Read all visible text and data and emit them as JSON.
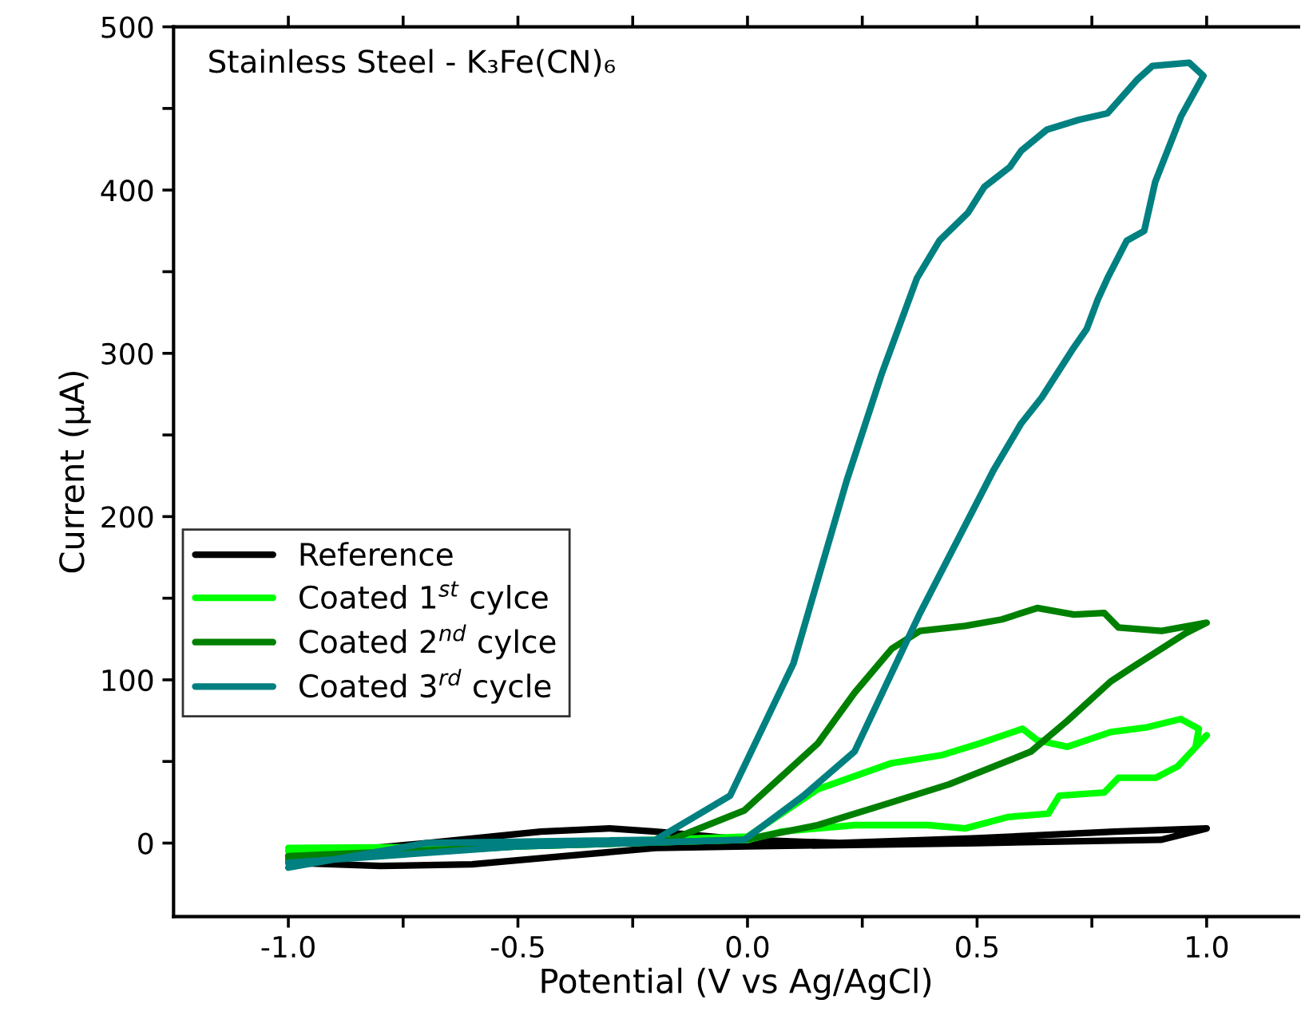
{
  "chart_data": {
    "type": "line",
    "title": "Stainless Steel - K₃Fe(CN)₆",
    "xlabel": "Potential (V vs Ag/AgCl)",
    "ylabel": "Current (μA)",
    "xlim": [
      -1.25,
      1.2
    ],
    "ylim": [
      -45,
      500
    ],
    "xticks": [
      {
        "value": -1.0,
        "label": "-1.0"
      },
      {
        "value": -0.75,
        "label": null
      },
      {
        "value": -0.5,
        "label": "-0.5"
      },
      {
        "value": -0.25,
        "label": null
      },
      {
        "value": 0.0,
        "label": "0.0"
      },
      {
        "value": 0.25,
        "label": null
      },
      {
        "value": 0.5,
        "label": "0.5"
      },
      {
        "value": 0.75,
        "label": null
      },
      {
        "value": 1.0,
        "label": "1.0"
      }
    ],
    "yticks": [
      0,
      {
        "value": 50,
        "label": null
      },
      100,
      {
        "value": 150,
        "label": null
      },
      200,
      {
        "value": 250,
        "label": null
      },
      300,
      {
        "value": 350,
        "label": null
      },
      400,
      {
        "value": 450,
        "label": null
      },
      500
    ],
    "grid": false,
    "legend": "left",
    "marker": "none",
    "line_style": "solid",
    "series": [
      {
        "name": "Reference",
        "color": "#000000",
        "x": [
          -1.0,
          -0.8,
          -0.6,
          -0.4,
          -0.2,
          0.0,
          0.5,
          0.9,
          1.0,
          0.8,
          0.5,
          0.2,
          0.0,
          -0.2,
          -0.3,
          -0.45,
          -0.7,
          -1.0
        ],
        "values": [
          -12,
          -14,
          -13,
          -8,
          -3,
          -2,
          0,
          2,
          9,
          7,
          3,
          0,
          2,
          7,
          9,
          7,
          0,
          -8
        ]
      },
      {
        "name": "Coated 1$^{st}$ cylce",
        "color": "#00ff00",
        "x": [
          -1.0,
          -0.5,
          0.0,
          0.153,
          0.314,
          0.425,
          0.505,
          0.599,
          0.631,
          0.697,
          0.791,
          0.871,
          0.944,
          0.983,
          0.976,
          1.0,
          0.937,
          0.889,
          0.808,
          0.777,
          0.679,
          0.655,
          0.568,
          0.474,
          0.394,
          0.233,
          0.073,
          0.0,
          -0.5,
          -1.0
        ],
        "values": [
          -5,
          -1,
          4,
          33,
          49,
          54,
          61,
          70,
          63,
          59,
          68,
          71,
          76,
          70,
          59,
          66,
          47,
          40,
          40,
          31,
          29,
          18,
          16,
          9,
          11,
          11,
          7,
          2,
          -2,
          -3
        ]
      },
      {
        "name": "Coated 2$^{nd}$ cylce",
        "color": "#008000",
        "x": [
          -1.0,
          -0.5,
          -0.167,
          -0.007,
          0.153,
          0.233,
          0.314,
          0.376,
          0.474,
          0.554,
          0.631,
          0.711,
          0.777,
          0.808,
          0.902,
          1.0,
          0.951,
          0.84,
          0.791,
          0.697,
          0.617,
          0.537,
          0.439,
          0.314,
          0.153,
          -0.007,
          -0.5,
          -1.0
        ],
        "values": [
          -8,
          -2,
          2,
          20,
          61,
          92,
          119,
          130,
          133,
          137,
          144,
          140,
          141,
          132,
          130,
          135,
          128,
          108,
          99,
          75,
          56,
          47,
          36,
          25,
          11,
          2,
          -2,
          -10
        ]
      },
      {
        "name": "Coated 3$^{rd}$ cycle",
        "color": "#008080",
        "x": [
          -1.0,
          -0.7,
          -0.2,
          -0.038,
          0.1,
          0.216,
          0.293,
          0.369,
          0.418,
          0.48,
          0.516,
          0.571,
          0.596,
          0.652,
          0.721,
          0.784,
          0.85,
          0.882,
          0.962,
          0.993,
          0.944,
          0.888,
          0.864,
          0.826,
          0.784,
          0.763,
          0.739,
          0.707,
          0.641,
          0.596,
          0.537,
          0.376,
          0.233,
          0.122,
          -0.007,
          -0.5,
          -1.0
        ],
        "values": [
          -15,
          0,
          2,
          29,
          110,
          222,
          288,
          346,
          369,
          386,
          402,
          414,
          424,
          437,
          443,
          447,
          468,
          476,
          478,
          470,
          445,
          405,
          375,
          369,
          346,
          333,
          315,
          302,
          273,
          257,
          229,
          141,
          56,
          29,
          2,
          -2,
          -12
        ]
      }
    ]
  }
}
